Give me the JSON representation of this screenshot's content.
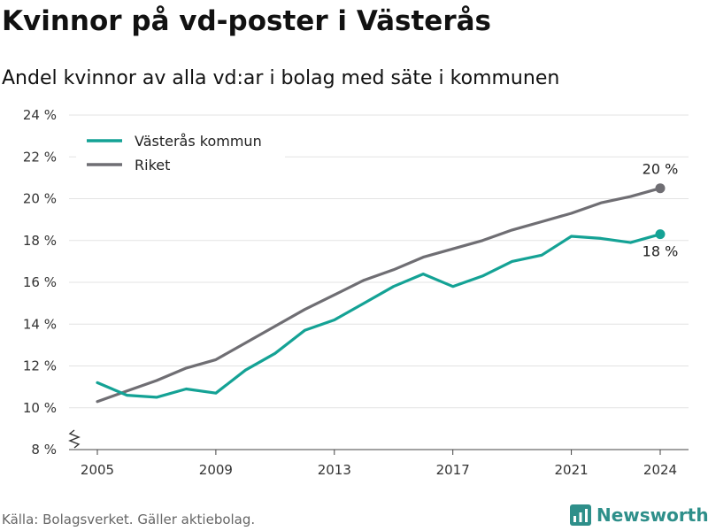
{
  "chart_data": {
    "type": "line",
    "title": "Kvinnor på vd-poster i Västerås",
    "subtitle": "Andel kvinnor av alla vd:ar i bolag med säte i kommunen",
    "x": [
      2005,
      2006,
      2007,
      2008,
      2009,
      2010,
      2011,
      2012,
      2013,
      2014,
      2015,
      2016,
      2017,
      2018,
      2019,
      2020,
      2021,
      2022,
      2023,
      2024
    ],
    "x_ticks": [
      "2005",
      "2009",
      "2013",
      "2017",
      "2021",
      "2024"
    ],
    "y_ticks": [
      "8 %",
      "10 %",
      "12 %",
      "14 %",
      "16 %",
      "18 %",
      "20 %",
      "22 %",
      "24 %"
    ],
    "ylim": [
      8,
      24
    ],
    "y_axis_break": true,
    "grid": true,
    "legend_position": "top-left",
    "series": [
      {
        "name": "Västerås kommun",
        "color": "#14a295",
        "values": [
          11.2,
          10.6,
          10.5,
          10.9,
          10.7,
          11.8,
          12.6,
          13.7,
          14.2,
          15.0,
          15.8,
          16.4,
          15.8,
          16.3,
          17.0,
          17.3,
          18.2,
          18.1,
          17.9,
          18.3
        ],
        "end_label": "18 %"
      },
      {
        "name": "Riket",
        "color": "#6f6e73",
        "values": [
          10.3,
          10.8,
          11.3,
          11.9,
          12.3,
          13.1,
          13.9,
          14.7,
          15.4,
          16.1,
          16.6,
          17.2,
          17.6,
          18.0,
          18.5,
          18.9,
          19.3,
          19.8,
          20.1,
          20.5
        ],
        "end_label": "20 %"
      }
    ]
  },
  "source": "Källa: Bolagsverket. Gäller aktiebolag.",
  "brand": {
    "name": "Newsworthy",
    "icon": "newsworthy-logo-icon",
    "color": "#2e8f8a"
  }
}
